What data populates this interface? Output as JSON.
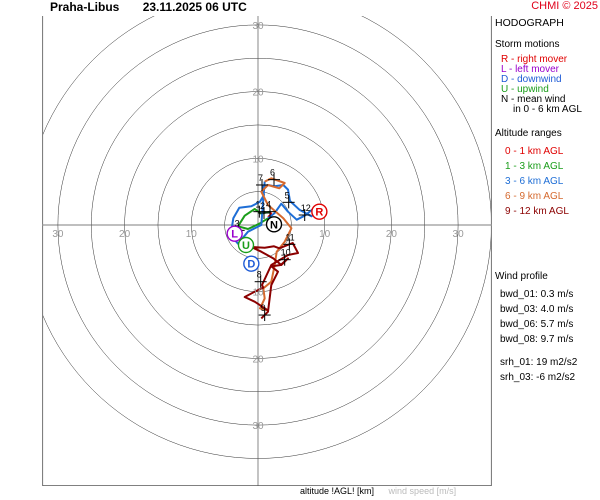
{
  "header": {
    "station": "Praha-Libus",
    "datetime": "23.11.2025 06 UTC",
    "copyright": "CHMI © 2025"
  },
  "panel": {
    "title": "HODOGRAPH",
    "storm_title": "Storm motions",
    "storm_items": [
      {
        "text": "R - right mover",
        "color": "#e00000"
      },
      {
        "text": "L - left mover",
        "color": "#9900cc"
      },
      {
        "text": "D - downwind",
        "color": "#1e5bd6"
      },
      {
        "text": "U - upwind",
        "color": "#1a9d1a"
      },
      {
        "text": "N - mean wind",
        "color": "#000000"
      },
      {
        "text": "in 0 - 6 km AGL",
        "color": "#000000"
      }
    ],
    "alt_title": "Altitude ranges",
    "alt_items": [
      {
        "text": "0 - 1 km AGL",
        "color": "#e00000"
      },
      {
        "text": "1 - 3 km AGL",
        "color": "#1a9d1a"
      },
      {
        "text": "3 - 6 km AGL",
        "color": "#1e6ed6"
      },
      {
        "text": "6 - 9 km AGL",
        "color": "#d5692e"
      },
      {
        "text": "9 - 12 km AGL",
        "color": "#8b0000"
      }
    ],
    "profile_title": "Wind profile",
    "profile_items": [
      "bwd_01: 0.3 m/s",
      "bwd_03: 4.0 m/s",
      "bwd_06: 5.7 m/s",
      "bwd_08: 9.7 m/s",
      "srh_01: 19 m2/s2",
      "srh_03: -6 m2/s2"
    ]
  },
  "footer": {
    "xlabel": "altitude !AGL! [km]",
    "ylabel": "wind speed [m/s]"
  },
  "chart_data": {
    "type": "hodograph",
    "rings_ms": [
      5,
      10,
      15,
      20,
      25,
      30,
      35
    ],
    "tick_labels": [
      "10",
      "20",
      "30"
    ],
    "limit": 35,
    "colors": {
      "r01": "#e00000",
      "r13": "#1a9d1a",
      "r36": "#1e6ed6",
      "r69": "#d5692e",
      "r912": "#8b0000"
    },
    "segments": [
      {
        "range": "0-1 km",
        "color_key": "r01",
        "points": [
          [
            1.5,
            1.2
          ],
          [
            2.0,
            1.6
          ],
          [
            1.8,
            2.0
          ]
        ]
      },
      {
        "range": "1-3 km",
        "color_key": "r13",
        "points": [
          [
            1.8,
            2.0
          ],
          [
            0.5,
            1.7
          ],
          [
            -0.5,
            2.4
          ],
          [
            -2.0,
            1.4
          ],
          [
            -3.0,
            -0.2
          ],
          [
            -1.5,
            -0.6
          ],
          [
            0.2,
            0.2
          ],
          [
            1.5,
            1.0
          ]
        ]
      },
      {
        "range": "3-6 km",
        "color_key": "r36",
        "points": [
          [
            1.5,
            1.0
          ],
          [
            2.5,
            1.8
          ],
          [
            3.5,
            3.2
          ],
          [
            4.5,
            2.0
          ],
          [
            5.8,
            0.8
          ],
          [
            7.0,
            1.4
          ],
          [
            9.0,
            3.0
          ],
          [
            9.3,
            2.3
          ],
          [
            8.0,
            1.3
          ],
          [
            6.2,
            2.3
          ],
          [
            4.8,
            3.6
          ],
          [
            4.5,
            5.3
          ],
          [
            3.8,
            6.0
          ],
          [
            2.5,
            5.8
          ],
          [
            1.5,
            6.0
          ],
          [
            0.7,
            5.8
          ],
          [
            0.9,
            4.5
          ],
          [
            0.3,
            3.5
          ],
          [
            -1.0,
            2.8
          ],
          [
            -2.8,
            2.6
          ],
          [
            -3.7,
            1.0
          ],
          [
            -4.1,
            -1.5
          ],
          [
            -3.0,
            -2.8
          ],
          [
            -1.5,
            -1.0
          ],
          [
            0.5,
            0.0
          ],
          [
            1.0,
            6.5
          ]
        ]
      },
      {
        "range": "6-9 km",
        "color_key": "r69",
        "points": [
          [
            1.0,
            6.5
          ],
          [
            2.0,
            7.0
          ],
          [
            4.0,
            6.3
          ],
          [
            3.2,
            5.5
          ],
          [
            1.5,
            6.0
          ],
          [
            0.5,
            5.0
          ],
          [
            1.5,
            3.0
          ],
          [
            3.8,
            1.0
          ],
          [
            5.0,
            -0.5
          ],
          [
            4.0,
            -2.5
          ],
          [
            2.8,
            -4.0
          ],
          [
            2.5,
            -6.0
          ],
          [
            2.0,
            -8.5
          ],
          [
            0.8,
            -9.5
          ],
          [
            1.0,
            -11.0
          ],
          [
            0.3,
            -12.5
          ],
          [
            1.5,
            -12.8
          ]
        ]
      },
      {
        "range": "9-12 km",
        "color_key": "r912",
        "points": [
          [
            1.5,
            -12.8
          ],
          [
            -0.5,
            -11.5
          ],
          [
            -2.0,
            -10.8
          ],
          [
            -0.5,
            -10.0
          ],
          [
            0.8,
            -9.4
          ],
          [
            0.6,
            -9.0
          ],
          [
            2.0,
            -6.0
          ],
          [
            4.5,
            -4.5
          ],
          [
            6.0,
            -4.2
          ],
          [
            5.2,
            -2.7
          ],
          [
            3.2,
            -3.5
          ],
          [
            2.4,
            -3.2
          ],
          [
            1.0,
            -3.4
          ],
          [
            -1.0,
            -3.3
          ],
          [
            0.5,
            -4.0
          ],
          [
            2.3,
            -5.0
          ],
          [
            3.5,
            -6.0
          ],
          [
            4.5,
            -5.0
          ],
          [
            3.4,
            -6.0
          ],
          [
            2.0,
            -6.2
          ],
          [
            3.0,
            -7.0
          ],
          [
            2.0,
            -9.0
          ],
          [
            1.5,
            -13.0
          ],
          [
            0.5,
            -14.0
          ]
        ]
      }
    ],
    "altitude_markers": [
      {
        "label": "1",
        "u": 0.2,
        "v": 2.0
      },
      {
        "label": "2",
        "u": 0.9,
        "v": 1.8
      },
      {
        "label": "3",
        "u": -2.9,
        "v": -0.8
      },
      {
        "label": "4",
        "u": 1.8,
        "v": 2.0
      },
      {
        "label": "5",
        "u": 4.6,
        "v": 3.4
      },
      {
        "label": "6",
        "u": 2.4,
        "v": 6.8
      },
      {
        "label": "7",
        "u": 0.6,
        "v": 6.0
      },
      {
        "label": "8",
        "u": 0.4,
        "v": -8.5
      },
      {
        "label": "9",
        "u": 1.0,
        "v": -13.5
      },
      {
        "label": "10",
        "u": 4.0,
        "v": -5.2
      },
      {
        "label": "11",
        "u": 4.7,
        "v": -2.9
      },
      {
        "label": "12",
        "u": 7.0,
        "v": 1.5
      }
    ],
    "storm_motions": [
      {
        "key": "R",
        "u": 9.2,
        "v": 2.0,
        "color": "#e00000"
      },
      {
        "key": "L",
        "u": -3.5,
        "v": -1.3,
        "color": "#9900cc"
      },
      {
        "key": "U",
        "u": -1.8,
        "v": -3.0,
        "color": "#1a9d1a"
      },
      {
        "key": "D",
        "u": -1.0,
        "v": -5.8,
        "color": "#1e5bd6"
      },
      {
        "key": "N",
        "u": 2.4,
        "v": 0.1,
        "color": "#000000"
      }
    ]
  }
}
